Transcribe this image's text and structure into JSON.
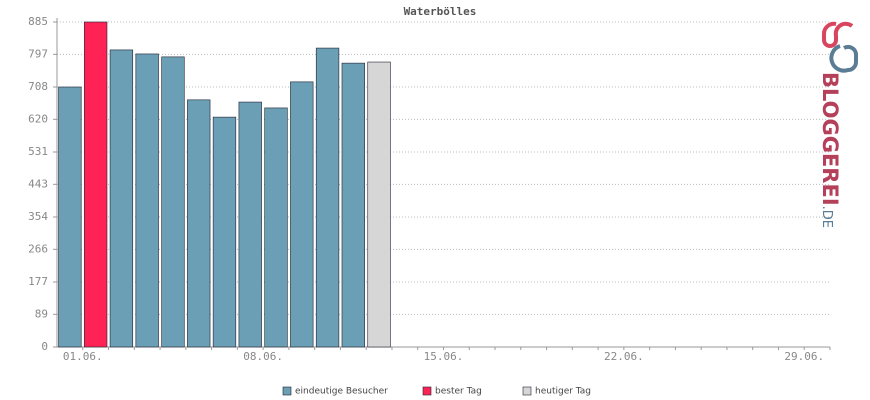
{
  "chart_data": {
    "type": "bar",
    "title": "Waterbölles",
    "categories": [
      "01.06.",
      null,
      null,
      null,
      null,
      null,
      null,
      "08.06.",
      null,
      null,
      null,
      null,
      null,
      null,
      "15.06.",
      null,
      null,
      null,
      null,
      null,
      null,
      "22.06.",
      null,
      null,
      null,
      null,
      null,
      null,
      "29.06.",
      null
    ],
    "series": [
      {
        "name": "eindeutige Besucher",
        "color": "#6a9fb5",
        "values": [
          708,
          null,
          809,
          798,
          790,
          673,
          626,
          667,
          651,
          722,
          814,
          773,
          null,
          null,
          null,
          null,
          null,
          null,
          null,
          null,
          null,
          null,
          null,
          null,
          null,
          null,
          null,
          null,
          null,
          null
        ]
      },
      {
        "name": "bester Tag",
        "color": "#ff2255",
        "values": [
          null,
          885,
          null,
          null,
          null,
          null,
          null,
          null,
          null,
          null,
          null,
          null,
          null,
          null,
          null,
          null,
          null,
          null,
          null,
          null,
          null,
          null,
          null,
          null,
          null,
          null,
          null,
          null,
          null,
          null
        ]
      },
      {
        "name": "heutiger Tag",
        "color": "#d6d6d6",
        "values": [
          null,
          null,
          null,
          null,
          null,
          null,
          null,
          null,
          null,
          null,
          null,
          null,
          776,
          null,
          null,
          null,
          null,
          null,
          null,
          null,
          null,
          null,
          null,
          null,
          null,
          null,
          null,
          null,
          null,
          null
        ]
      }
    ],
    "ylim": [
      0,
      885
    ],
    "yticks": [
      0,
      89,
      177,
      266,
      354,
      443,
      531,
      620,
      708,
      797,
      885
    ],
    "grid": true,
    "logo": {
      "text": "BLOGGEREI",
      "suffix": ".DE"
    }
  }
}
